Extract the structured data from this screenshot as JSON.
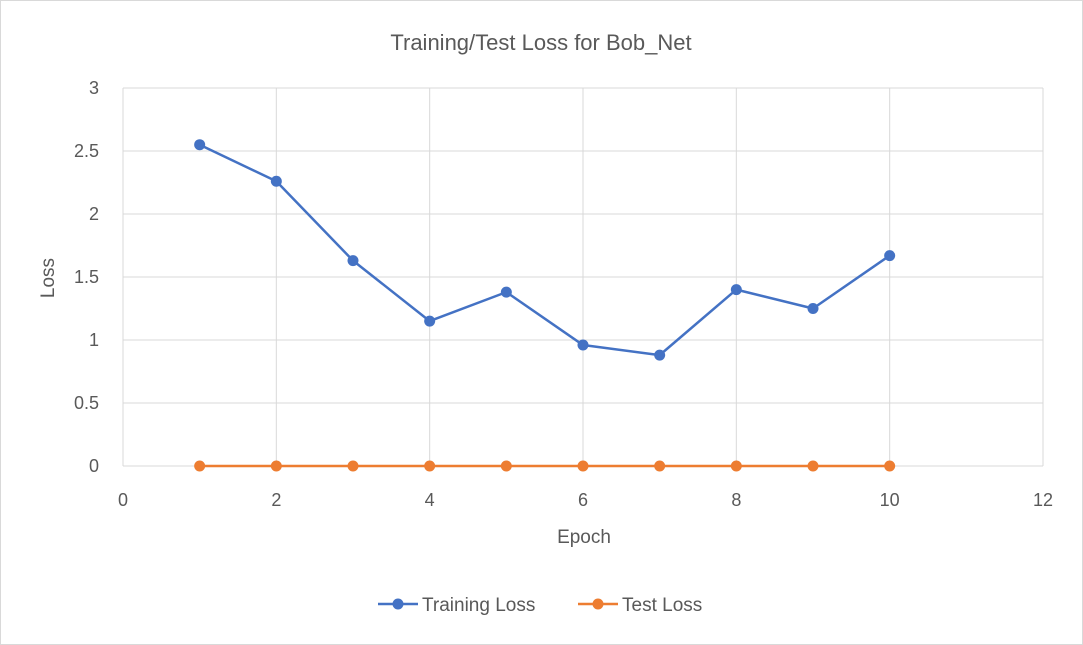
{
  "chart_data": {
    "type": "line",
    "title": "Training/Test Loss for Bob_Net",
    "xlabel": "Epoch",
    "ylabel": "Loss",
    "xlim": [
      0,
      12
    ],
    "ylim": [
      0,
      3
    ],
    "xticks": [
      0,
      2,
      4,
      6,
      8,
      10,
      12
    ],
    "yticks": [
      0,
      0.5,
      1,
      1.5,
      2,
      2.5,
      3
    ],
    "grid": true,
    "legend_position": "bottom",
    "series": [
      {
        "name": "Training Loss",
        "color": "#4472c4",
        "x": [
          1,
          2,
          3,
          4,
          5,
          6,
          7,
          8,
          9,
          10
        ],
        "y": [
          2.55,
          2.26,
          1.63,
          1.15,
          1.38,
          0.96,
          0.88,
          1.4,
          1.25,
          1.67
        ]
      },
      {
        "name": "Test Loss",
        "color": "#ed7d31",
        "x": [
          1,
          2,
          3,
          4,
          5,
          6,
          7,
          8,
          9,
          10
        ],
        "y": [
          0,
          0,
          0,
          0,
          0,
          0,
          0,
          0,
          0,
          0
        ]
      }
    ]
  }
}
